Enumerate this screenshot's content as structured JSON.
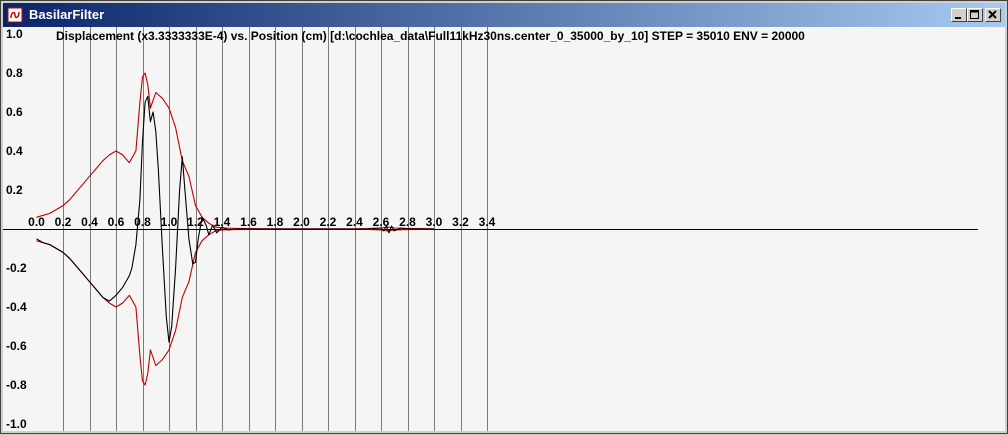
{
  "window": {
    "title": "BasilarFilter"
  },
  "chart_data": {
    "type": "line",
    "title": "Displacement (x3.3333333E-4) vs. Position (cm) [d:\\cochlea_data\\Full11kHz30ns.center_0_35000_by_10] STEP = 35010 ENV = 20000",
    "xlim": [
      0,
      3.4
    ],
    "ylim": [
      -1.0,
      1.0
    ],
    "x_ticks": [
      "0.0",
      "0.2",
      "0.4",
      "0.6",
      "0.8",
      "1.0",
      "1.2",
      "1.4",
      "1.6",
      "1.8",
      "2.0",
      "2.2",
      "2.4",
      "2.6",
      "2.8",
      "3.0",
      "3.2",
      "3.4"
    ],
    "y_ticks": [
      "1.0",
      "0.8",
      "0.6",
      "0.4",
      "0.2",
      "0.0",
      "-0.2",
      "-0.4",
      "-0.6",
      "-0.8",
      "-1.0"
    ],
    "grid": "vertical",
    "colors": {
      "envelope": "#c00000",
      "displacement": "#000000"
    },
    "series": [
      {
        "id": "upper_envelope",
        "color": "#c00000",
        "x": [
          0.0,
          0.05,
          0.1,
          0.15,
          0.2,
          0.25,
          0.3,
          0.35,
          0.4,
          0.45,
          0.5,
          0.55,
          0.6,
          0.65,
          0.7,
          0.75,
          0.78,
          0.8,
          0.82,
          0.84,
          0.86,
          0.88,
          0.9,
          0.95,
          1.0,
          1.05,
          1.1,
          1.15,
          1.2,
          1.25,
          1.3,
          1.35,
          1.4,
          1.5,
          1.6,
          1.8,
          2.0,
          2.4,
          2.5,
          2.6,
          2.65,
          2.7,
          2.8,
          2.9,
          3.0
        ],
        "y": [
          0.06,
          0.07,
          0.08,
          0.1,
          0.12,
          0.15,
          0.19,
          0.23,
          0.27,
          0.31,
          0.35,
          0.38,
          0.4,
          0.38,
          0.34,
          0.4,
          0.65,
          0.78,
          0.8,
          0.74,
          0.62,
          0.66,
          0.7,
          0.67,
          0.62,
          0.52,
          0.35,
          0.27,
          0.12,
          0.06,
          0.03,
          0.01,
          0.005,
          0.003,
          0.002,
          0.001,
          0.001,
          0.001,
          0.002,
          0.005,
          0.01,
          0.005,
          0.003,
          0.002,
          0.001
        ]
      },
      {
        "id": "lower_envelope",
        "color": "#c00000",
        "x": [
          0.0,
          0.05,
          0.1,
          0.15,
          0.2,
          0.25,
          0.3,
          0.35,
          0.4,
          0.45,
          0.5,
          0.55,
          0.6,
          0.65,
          0.7,
          0.75,
          0.78,
          0.8,
          0.82,
          0.84,
          0.86,
          0.88,
          0.9,
          0.95,
          1.0,
          1.05,
          1.1,
          1.15,
          1.2,
          1.25,
          1.3,
          1.35,
          1.4,
          1.5,
          1.6,
          1.8,
          2.0,
          2.4,
          2.5,
          2.6,
          2.65,
          2.7,
          2.8,
          2.9,
          3.0
        ],
        "y": [
          -0.06,
          -0.07,
          -0.08,
          -0.1,
          -0.12,
          -0.15,
          -0.19,
          -0.23,
          -0.27,
          -0.31,
          -0.35,
          -0.38,
          -0.4,
          -0.38,
          -0.34,
          -0.4,
          -0.65,
          -0.78,
          -0.8,
          -0.74,
          -0.62,
          -0.66,
          -0.7,
          -0.67,
          -0.62,
          -0.52,
          -0.35,
          -0.27,
          -0.12,
          -0.06,
          -0.03,
          -0.01,
          -0.005,
          -0.003,
          -0.002,
          -0.001,
          -0.001,
          -0.001,
          -0.002,
          -0.005,
          -0.01,
          -0.005,
          -0.003,
          -0.002,
          -0.001
        ]
      },
      {
        "id": "displacement",
        "color": "#000000",
        "x": [
          0.0,
          0.05,
          0.1,
          0.15,
          0.2,
          0.25,
          0.3,
          0.35,
          0.4,
          0.45,
          0.5,
          0.55,
          0.6,
          0.65,
          0.7,
          0.72,
          0.75,
          0.78,
          0.8,
          0.82,
          0.84,
          0.86,
          0.88,
          0.9,
          0.92,
          0.95,
          0.98,
          1.0,
          1.02,
          1.05,
          1.08,
          1.1,
          1.12,
          1.15,
          1.18,
          1.2,
          1.22,
          1.25,
          1.28,
          1.3,
          1.33,
          1.36,
          1.4,
          1.45,
          1.5,
          1.6,
          2.0,
          2.5,
          2.6,
          2.62,
          2.64,
          2.66,
          2.68,
          2.7,
          2.75,
          2.8,
          3.0
        ],
        "y": [
          -0.05,
          -0.07,
          -0.08,
          -0.1,
          -0.12,
          -0.15,
          -0.19,
          -0.23,
          -0.27,
          -0.31,
          -0.35,
          -0.37,
          -0.34,
          -0.3,
          -0.24,
          -0.2,
          -0.08,
          0.15,
          0.45,
          0.65,
          0.68,
          0.55,
          0.6,
          0.5,
          0.3,
          -0.1,
          -0.45,
          -0.58,
          -0.5,
          -0.2,
          0.2,
          0.37,
          0.2,
          -0.05,
          -0.18,
          -0.17,
          -0.05,
          0.06,
          0.02,
          -0.03,
          0.02,
          -0.02,
          0.01,
          -0.005,
          0.0,
          0.0,
          0.0,
          0.0,
          0.005,
          -0.01,
          0.015,
          -0.02,
          0.015,
          -0.01,
          0.005,
          0.0,
          0.0
        ]
      }
    ]
  }
}
